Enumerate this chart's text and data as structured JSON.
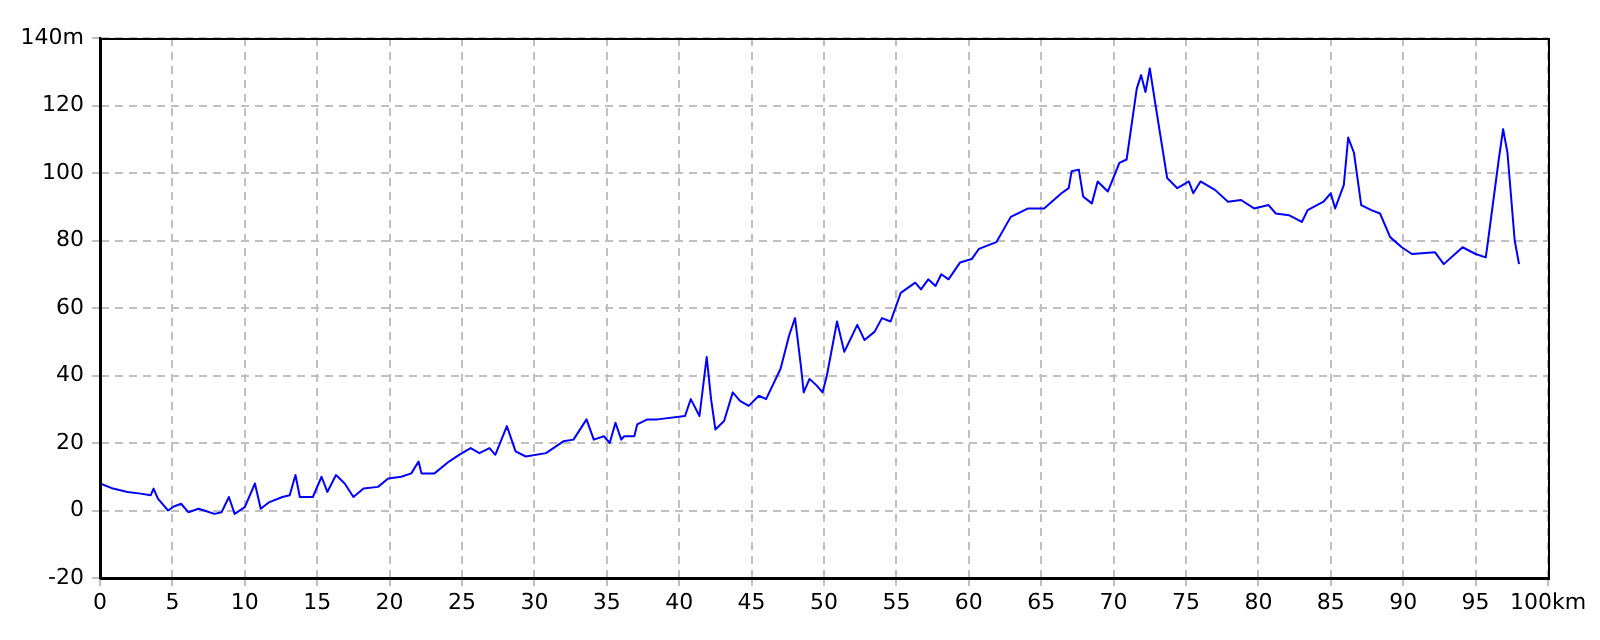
{
  "chart_data": {
    "type": "line",
    "x": [
      0,
      0.9,
      1.9,
      2.8,
      3.5,
      3.7,
      4,
      4.7,
      5.1,
      5.6,
      6.1,
      6.8,
      7.2,
      7.9,
      8.4,
      8.9,
      9.3,
      10,
      10.7,
      11.1,
      11.7,
      12.6,
      13.1,
      13.5,
      13.8,
      14.7,
      15.3,
      15.7,
      16.3,
      16.9,
      17.5,
      18.2,
      19.2,
      19.9,
      20.8,
      21.5,
      22,
      22.2,
      23.1,
      24.1,
      24.8,
      25.6,
      26.2,
      26.9,
      27.3,
      28.1,
      28.7,
      29.4,
      30.8,
      32,
      32.7,
      33.6,
      34.1,
      34.8,
      35.2,
      35.6,
      36,
      36.2,
      36.9,
      37.1,
      37.8,
      38.5,
      40.4,
      40.8,
      41.4,
      41.9,
      42.2,
      42.5,
      43.1,
      43.7,
      44.2,
      44.8,
      45.5,
      46,
      47,
      47.6,
      48,
      48.4,
      48.6,
      49,
      49.5,
      49.9,
      50.2,
      50.9,
      51.4,
      52.3,
      52.8,
      53.5,
      54,
      54.6,
      55.3,
      56.3,
      56.7,
      57.2,
      57.7,
      58.1,
      58.6,
      59.4,
      60.2,
      60.7,
      61.9,
      62.9,
      64.1,
      65.2,
      66.4,
      66.9,
      67.1,
      67.6,
      67.9,
      68.5,
      68.9,
      69.6,
      70.4,
      70.9,
      71.6,
      71.9,
      72.2,
      72.5,
      72.9,
      73.7,
      74.4,
      75.2,
      75.5,
      76,
      77,
      77.9,
      78.8,
      79.7,
      80.7,
      81.2,
      82.1,
      83,
      83.4,
      84.5,
      85,
      85.3,
      85.9,
      86.2,
      86.6,
      87.1,
      87.8,
      88.4,
      89.1,
      89.9,
      90.6,
      92.2,
      92.8,
      94.1,
      95,
      95.7,
      95.8,
      96.6,
      96.9,
      97.2,
      97.7,
      98
    ],
    "series": [
      {
        "color": "#0000ff",
        "values": [
          8,
          6.5,
          5.5,
          5,
          4.5,
          6.5,
          3.5,
          0,
          1.2,
          2,
          -0.5,
          0.5,
          0,
          -1,
          -0.5,
          4,
          -1,
          1,
          8,
          0.5,
          2.5,
          4,
          4.5,
          10.5,
          4,
          4,
          10,
          5.5,
          10.5,
          8,
          4,
          6.5,
          7,
          9.5,
          10,
          11,
          14.5,
          11,
          11,
          14.5,
          16.5,
          18.5,
          17,
          18.5,
          16.5,
          25,
          17.5,
          16,
          17,
          20.5,
          21,
          27,
          21,
          22,
          20,
          26,
          21,
          22,
          22,
          25.5,
          27,
          27,
          28,
          33,
          28,
          45.5,
          33,
          24,
          26.5,
          35,
          32.5,
          31,
          34,
          33,
          42,
          52,
          57,
          43,
          35,
          39,
          37,
          35,
          40,
          56,
          47,
          55,
          50.5,
          53,
          57,
          56,
          64.5,
          67.5,
          65.5,
          68.5,
          66.5,
          70,
          68.5,
          73.5,
          74.5,
          77.5,
          79.5,
          87,
          89.5,
          89.5,
          94,
          95.5,
          100.5,
          101,
          93,
          91,
          97.5,
          94.5,
          103,
          104,
          125,
          129,
          124,
          131,
          120,
          98.5,
          95.5,
          97.5,
          94,
          97.5,
          95,
          91.5,
          92,
          89.5,
          90.5,
          88,
          87.5,
          85.5,
          89,
          91.5,
          94,
          89.5,
          96.5,
          110.5,
          106,
          90.5,
          89,
          88,
          81,
          78,
          76,
          76.5,
          73,
          78,
          76,
          75,
          78,
          104,
          113,
          106,
          80,
          73
        ]
      }
    ],
    "xlim": [
      0,
      100
    ],
    "xticks": [
      0,
      5,
      10,
      15,
      20,
      25,
      30,
      35,
      40,
      45,
      50,
      55,
      60,
      65,
      70,
      75,
      80,
      85,
      90,
      95,
      {
        "value": 100,
        "label": "100km"
      }
    ],
    "ylim": [
      -20,
      140
    ],
    "yticks": [
      -20,
      0,
      20,
      40,
      60,
      80,
      100,
      120,
      {
        "value": 140,
        "label": "140m"
      }
    ],
    "grid": true,
    "legend": false,
    "marker": "none",
    "line_style": "solid"
  }
}
